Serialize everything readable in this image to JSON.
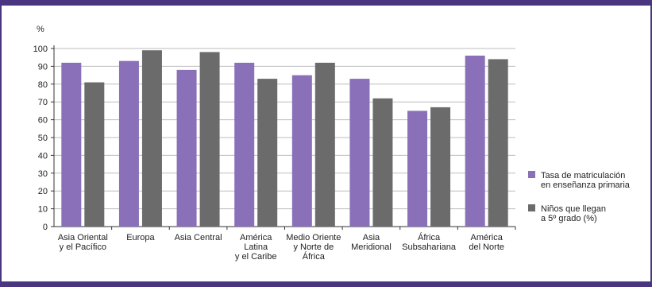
{
  "chart_data": {
    "type": "bar",
    "ylabel": "%",
    "ylim": [
      0,
      100
    ],
    "yticks": [
      0,
      10,
      20,
      30,
      40,
      50,
      60,
      70,
      80,
      90,
      100
    ],
    "grid": true,
    "legend_position": "right",
    "categories": [
      [
        "Asia Oriental",
        "y el Pacífico"
      ],
      [
        "Europa"
      ],
      [
        "Asia Central"
      ],
      [
        "América",
        "Latina",
        "y el Caribe"
      ],
      [
        "Medio Oriente",
        "y Norte de",
        "África"
      ],
      [
        "Asia",
        "Meridional"
      ],
      [
        "África",
        "Subsahariana"
      ],
      [
        "América",
        "del Norte"
      ]
    ],
    "series": [
      {
        "name": [
          "Tasa de matriculación",
          "en enseñanza primaria"
        ],
        "color": "#8a70b8",
        "values": [
          92,
          93,
          88,
          92,
          85,
          83,
          65,
          96
        ]
      },
      {
        "name": [
          "Niños que llegan",
          "a 5º grado (%)"
        ],
        "color": "#6b6b6b",
        "values": [
          81,
          99,
          98,
          83,
          92,
          72,
          67,
          94
        ]
      }
    ]
  }
}
